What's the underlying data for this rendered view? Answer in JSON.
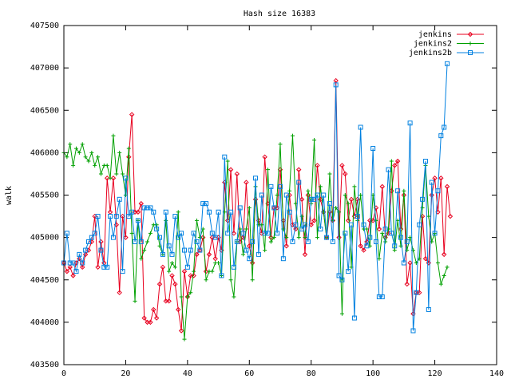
{
  "chart_data": {
    "type": "line",
    "title": "Hash size 16383",
    "xlabel": "",
    "ylabel": "walk",
    "xlim": [
      0,
      140
    ],
    "ylim": [
      403500,
      407500
    ],
    "xticks": [
      0,
      20,
      40,
      60,
      80,
      100,
      120,
      140
    ],
    "yticks": [
      403500,
      404000,
      404500,
      405000,
      405500,
      406000,
      406500,
      407000,
      407500
    ],
    "grid": false,
    "legend_position": "top-right",
    "series": [
      {
        "name": "jenkins",
        "color": "#e8001f",
        "marker": "diamond",
        "y": [
          404700,
          404600,
          404650,
          404550,
          404700,
          404750,
          404650,
          404800,
          404850,
          404950,
          405250,
          404650,
          404950,
          404700,
          405700,
          405300,
          405700,
          405150,
          404350,
          405250,
          405000,
          405950,
          406450,
          405300,
          405300,
          405400,
          404050,
          404000,
          404000,
          404150,
          404050,
          404450,
          404650,
          404250,
          404250,
          404550,
          404450,
          404150,
          403900,
          404600,
          404300,
          404550,
          404550,
          404800,
          404850,
          405000,
          404600,
          404800,
          405000,
          404750,
          405000,
          404850,
          405650,
          405200,
          405800,
          405050,
          405750,
          404950,
          405000,
          405650,
          404900,
          404700,
          405450,
          405200,
          405050,
          405950,
          405400,
          405000,
          405350,
          405350,
          405800,
          405200,
          404900,
          405500,
          405150,
          405100,
          405800,
          405450,
          404800,
          405500,
          405150,
          405200,
          405850,
          405450,
          405300,
          405000,
          405300,
          405200,
          406850,
          405000,
          405850,
          405750,
          405200,
          405450,
          405250,
          405450,
          404900,
          404850,
          404950,
          405200,
          405200,
          405350,
          405100,
          405600,
          405000,
          405050,
          405550,
          405850,
          405900,
          405100,
          405500,
          404450,
          404700,
          404100,
          404350,
          404350,
          405250,
          404750,
          404700,
          405500,
          405700,
          405300,
          405700,
          404800,
          405600,
          405250
        ]
      },
      {
        "name": "jenkins2",
        "color": "#00a000",
        "marker": "plus",
        "y": [
          406000,
          405950,
          406100,
          405850,
          406050,
          406000,
          406100,
          405950,
          405900,
          406000,
          405850,
          405950,
          405750,
          405850,
          405850,
          405700,
          406200,
          405750,
          406000,
          405750,
          405500,
          406050,
          405050,
          404250,
          405200,
          404750,
          404850,
          404950,
          405050,
          405150,
          405150,
          404900,
          404800,
          405200,
          404600,
          404700,
          404650,
          405300,
          404300,
          403800,
          404300,
          404350,
          404600,
          405200,
          405000,
          405100,
          404500,
          404600,
          404600,
          404700,
          404700,
          404550,
          405300,
          405900,
          404500,
          404300,
          404950,
          405100,
          404800,
          405100,
          405350,
          404500,
          405600,
          405150,
          405150,
          404850,
          405800,
          404950,
          405000,
          405500,
          406100,
          405100,
          405000,
          405550,
          406200,
          405400,
          405000,
          405250,
          405000,
          405550,
          405400,
          406150,
          405000,
          405600,
          405300,
          405000,
          405750,
          405200,
          405350,
          405300,
          404100,
          405500,
          405400,
          404650,
          405600,
          405200,
          405500,
          405100,
          405100,
          404900,
          405500,
          405200,
          404750,
          405050,
          404950,
          405100,
          405900,
          404850,
          405200,
          404900,
          405550,
          404850,
          405000,
          404850,
          404700,
          404750,
          405350,
          405850,
          405250,
          404950,
          405050,
          404700,
          404450,
          404550,
          404650
        ]
      },
      {
        "name": "jenkins2b",
        "color": "#0080e0",
        "marker": "square",
        "y": [
          404700,
          405050,
          404700,
          404700,
          404600,
          404800,
          404700,
          404850,
          404950,
          405000,
          405050,
          405250,
          404850,
          404650,
          404650,
          405250,
          405000,
          405250,
          405450,
          404600,
          405700,
          405250,
          405300,
          404950,
          405200,
          404950,
          405350,
          405350,
          405350,
          405300,
          405100,
          405000,
          404800,
          405300,
          404900,
          404800,
          405250,
          405000,
          405050,
          404850,
          404650,
          404850,
          405050,
          404950,
          404850,
          405400,
          405400,
          405300,
          405050,
          405000,
          405300,
          404550,
          405950,
          405050,
          405300,
          404650,
          404950,
          405350,
          405050,
          404850,
          404750,
          404950,
          405700,
          404800,
          405500,
          405050,
          405050,
          405600,
          405350,
          405050,
          405600,
          404750,
          405500,
          405300,
          404950,
          405150,
          405650,
          405100,
          405150,
          404950,
          405450,
          405450,
          405500,
          405100,
          405500,
          405000,
          405400,
          404950,
          406800,
          404550,
          404500,
          405050,
          404600,
          405150,
          404050,
          405250,
          406300,
          405150,
          404900,
          405000,
          406050,
          404950,
          404300,
          404300,
          405100,
          405800,
          405050,
          404900,
          405550,
          405000,
          404700,
          404950,
          406350,
          403900,
          404350,
          405150,
          405450,
          405900,
          404150,
          405650,
          405050,
          405550,
          406200,
          406300,
          407050
        ]
      }
    ]
  }
}
